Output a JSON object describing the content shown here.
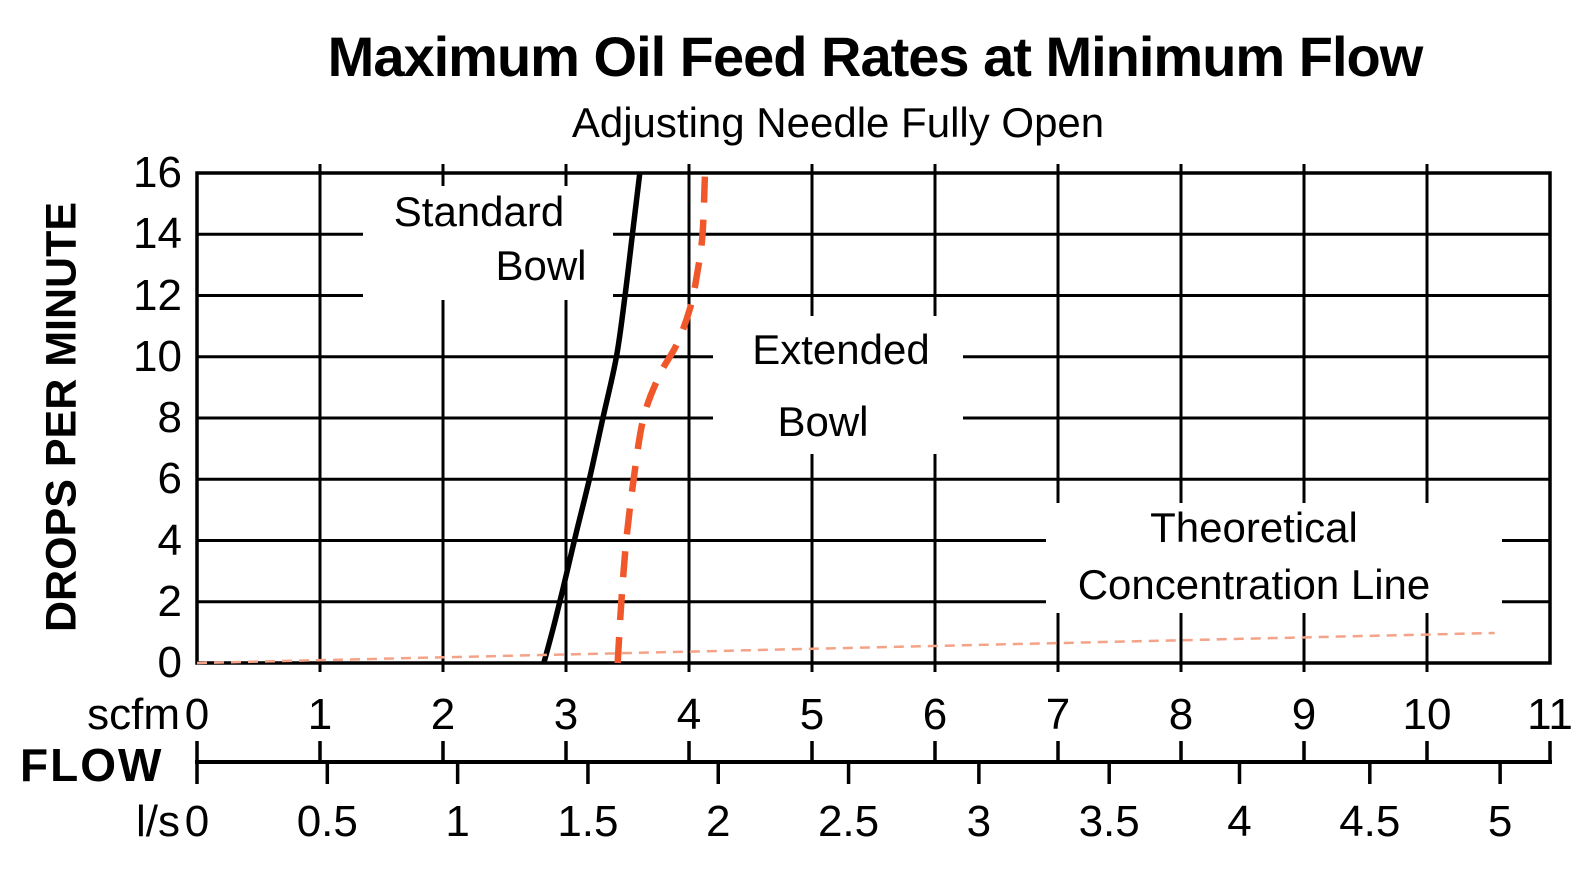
{
  "chart_data": {
    "type": "line",
    "title": "Maximum Oil Feed Rates at Minimum Flow",
    "subtitle": "Adjusting Needle Fully Open",
    "ylabel": "DROPS PER MINUTE",
    "ylim": [
      0,
      16
    ],
    "y_ticks": [
      "0",
      "2",
      "4",
      "6",
      "8",
      "10",
      "12",
      "14",
      "16"
    ],
    "x_axis_label": "FLOW",
    "x_scales": [
      {
        "unit": "scfm",
        "ticks": [
          "0",
          "1",
          "2",
          "3",
          "4",
          "5",
          "6",
          "7",
          "8",
          "9",
          "10",
          "11"
        ],
        "lim": [
          0,
          11
        ]
      },
      {
        "unit": "l/s",
        "ticks": [
          "0",
          "0.5",
          "1",
          "1.5",
          "2",
          "2.5",
          "3",
          "3.5",
          "4",
          "4.5",
          "5"
        ],
        "lim": [
          0,
          5
        ],
        "scfm_per_unit": 2.1189
      }
    ],
    "grid": true,
    "legend_position": "inline-labels",
    "series": [
      {
        "name": "Standard Bowl",
        "label_lines": [
          "Standard",
          "Bowl"
        ],
        "line_style": "solid",
        "color": "#000000",
        "points_scfm_dropsPerMin": [
          [
            2.82,
            0
          ],
          [
            2.9,
            1.2
          ],
          [
            2.98,
            2.5
          ],
          [
            3.08,
            4.2
          ],
          [
            3.19,
            6.0
          ],
          [
            3.3,
            8.0
          ],
          [
            3.41,
            10.0
          ],
          [
            3.48,
            12.0
          ],
          [
            3.54,
            14.0
          ],
          [
            3.6,
            16.0
          ]
        ]
      },
      {
        "name": "Extended Bowl",
        "label_lines": [
          "Extended",
          "Bowl"
        ],
        "line_style": "dashed",
        "color": "#F0582B",
        "points_scfm_dropsPerMin": [
          [
            3.42,
            0
          ],
          [
            3.45,
            2.0
          ],
          [
            3.49,
            4.0
          ],
          [
            3.55,
            6.0
          ],
          [
            3.63,
            8.0
          ],
          [
            3.76,
            9.4
          ],
          [
            3.9,
            10.4
          ],
          [
            4.01,
            11.6
          ],
          [
            4.07,
            12.8
          ],
          [
            4.11,
            14.0
          ],
          [
            4.13,
            16.0
          ]
        ]
      },
      {
        "name": "Theoretical Concentration Line",
        "label_lines": [
          "Theoretical",
          "Concentration Line"
        ],
        "line_style": "fine-dashed",
        "color": "#F4A288",
        "points_scfm_dropsPerMin": [
          [
            0,
            0
          ],
          [
            10.55,
            0.98
          ]
        ]
      }
    ]
  }
}
